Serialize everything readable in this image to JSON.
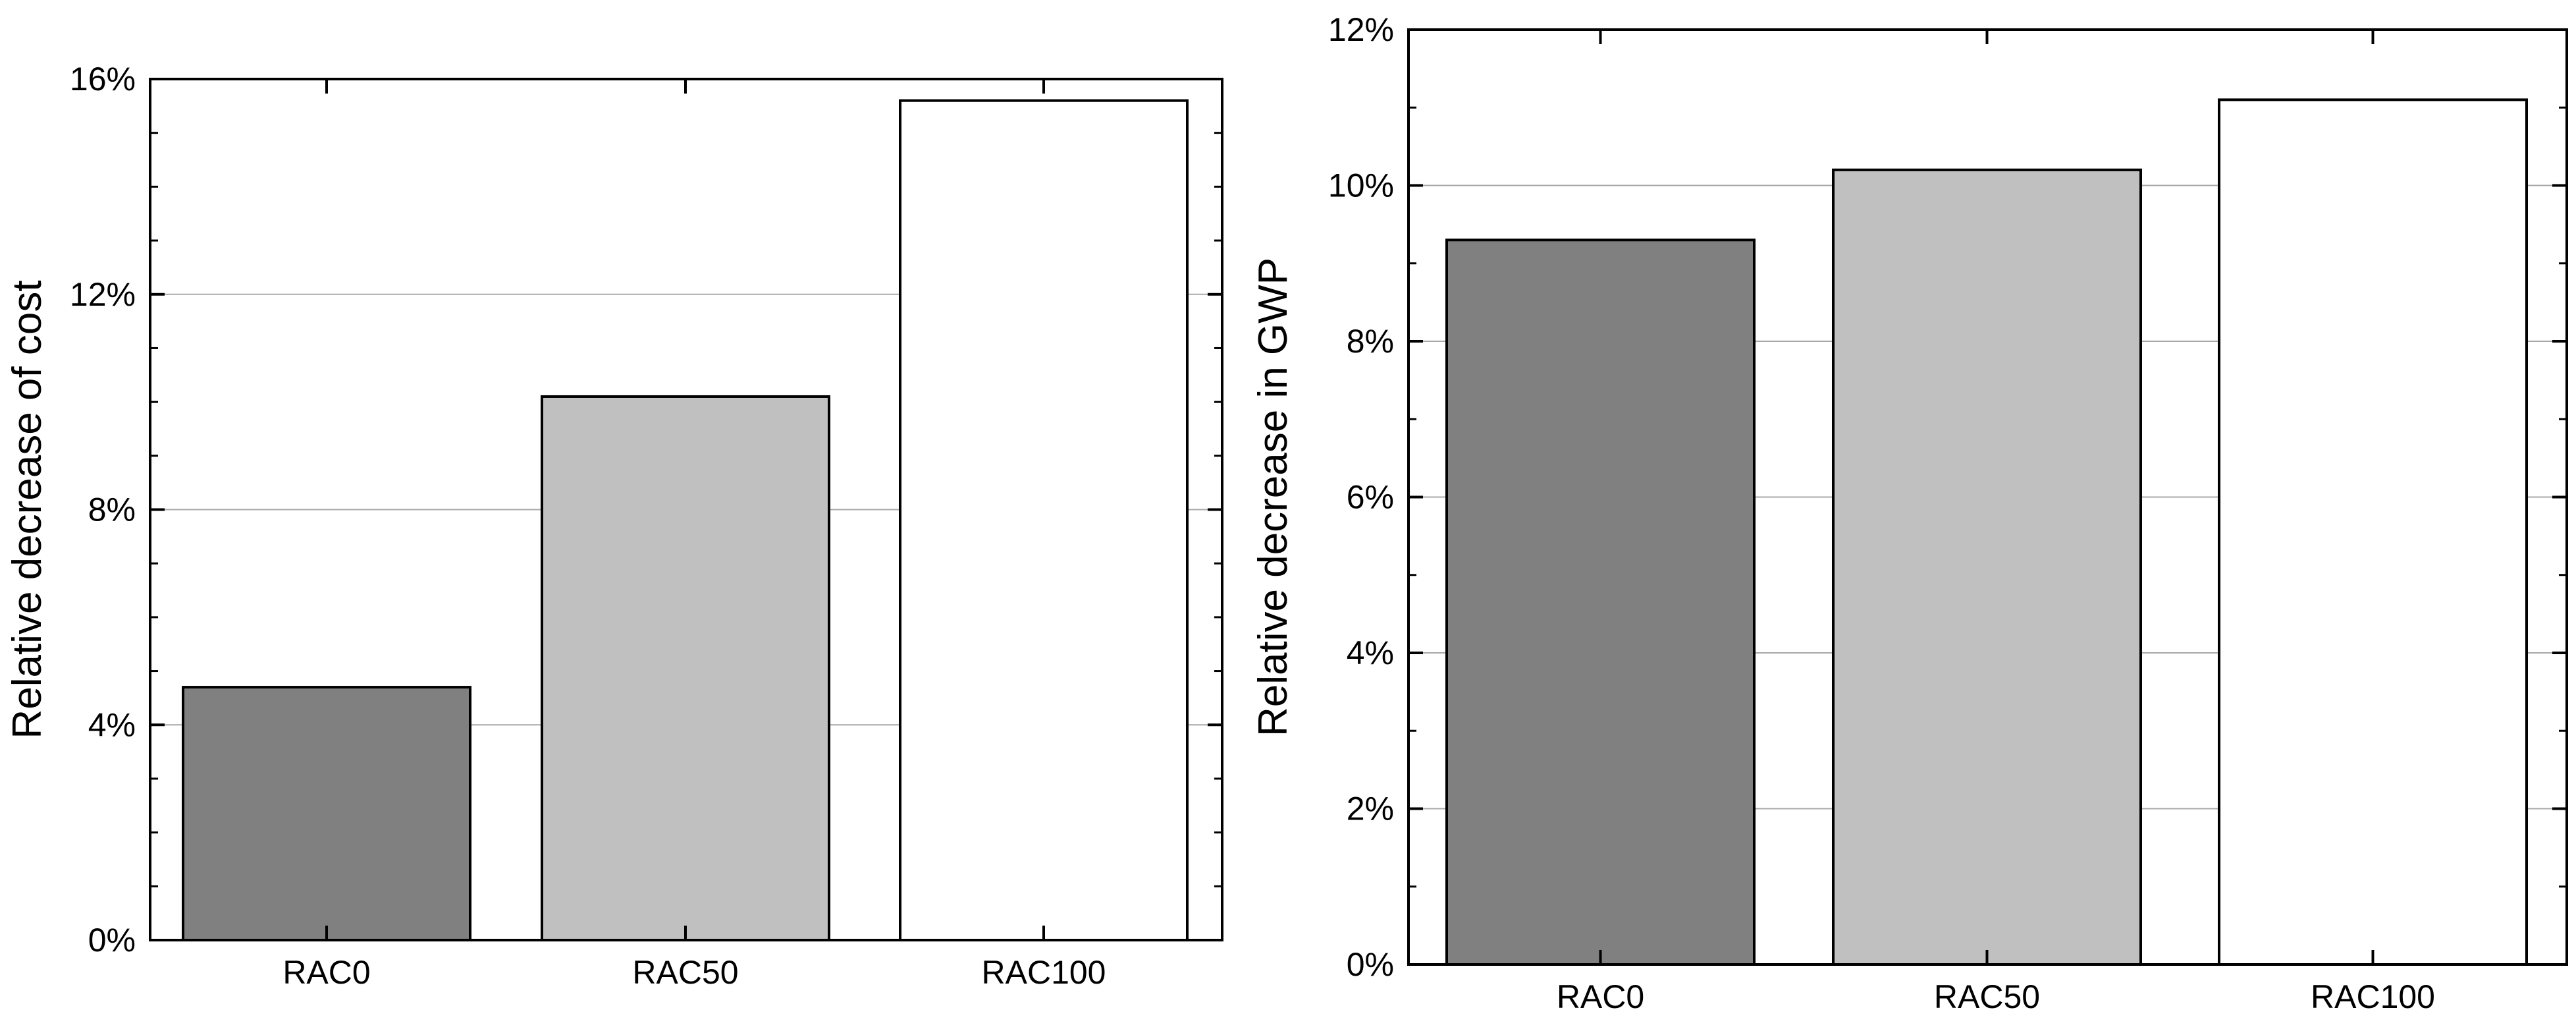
{
  "chart_data": [
    {
      "type": "bar",
      "ylabel": "Relative decrease of cost",
      "xlabel": "",
      "categories": [
        "RAC0",
        "RAC50",
        "RAC100"
      ],
      "values": [
        4.7,
        10.1,
        15.6
      ],
      "ylim": [
        0,
        16
      ],
      "yticks": [
        0,
        4,
        8,
        12,
        16
      ],
      "ytick_labels": [
        "0%",
        "4%",
        "8%",
        "12%",
        "16%"
      ],
      "bar_colors": [
        "#808080",
        "#c0c0c0",
        "#ffffff"
      ],
      "grid": true
    },
    {
      "type": "bar",
      "ylabel": "Relative decrease in GWP",
      "xlabel": "",
      "categories": [
        "RAC0",
        "RAC50",
        "RAC100"
      ],
      "values": [
        9.3,
        10.2,
        11.1
      ],
      "ylim": [
        0,
        12
      ],
      "yticks": [
        0,
        2,
        4,
        6,
        8,
        10,
        12
      ],
      "ytick_labels": [
        "0%",
        "2%",
        "4%",
        "6%",
        "8%",
        "10%",
        "12%"
      ],
      "bar_colors": [
        "#808080",
        "#c0c0c0",
        "#ffffff"
      ],
      "grid": true
    }
  ]
}
